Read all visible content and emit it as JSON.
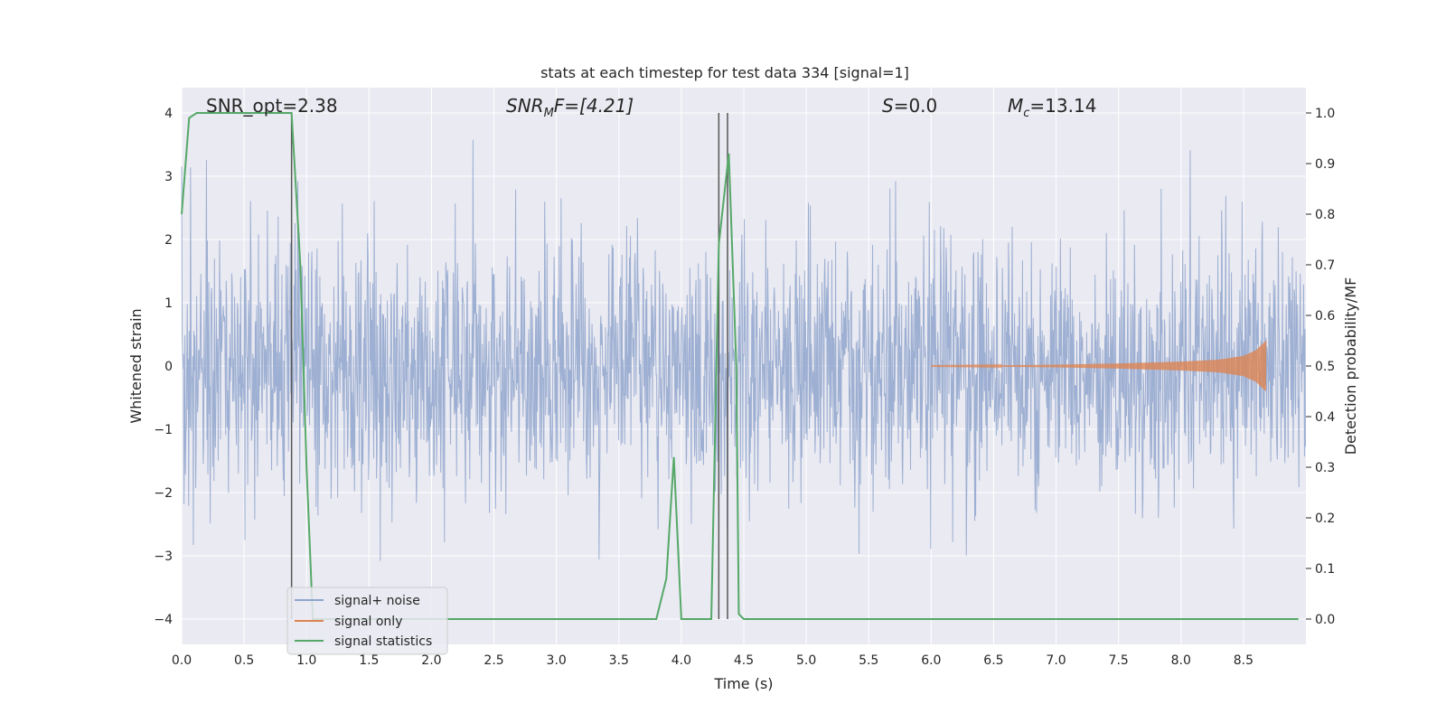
{
  "chart_data": {
    "type": "line",
    "title": "stats at each timestep for test data 334 [signal=1]",
    "xlabel": "Time (s)",
    "ylabel_left": "Whitened strain",
    "ylabel_right": "Detection probability/MF",
    "xlim": [
      0.0,
      9.0
    ],
    "ylim_left": [
      -4.4,
      4.4
    ],
    "ylim_right": [
      -0.05,
      1.05
    ],
    "x_ticks": [
      "0.0",
      "0.5",
      "1.0",
      "1.5",
      "2.0",
      "2.5",
      "3.0",
      "3.5",
      "4.0",
      "4.5",
      "5.0",
      "5.5",
      "6.0",
      "6.5",
      "7.0",
      "7.5",
      "8.0",
      "8.5"
    ],
    "y_left_ticks": [
      "−4",
      "−3",
      "−2",
      "−1",
      "0",
      "1",
      "2",
      "3",
      "4"
    ],
    "y_right_ticks": [
      "0.0",
      "0.1",
      "0.2",
      "0.3",
      "0.4",
      "0.5",
      "0.6",
      "0.7",
      "0.8",
      "0.9",
      "1.0"
    ],
    "grid": true,
    "legend_position": "lower-left",
    "annotations": {
      "snr_opt": "SNR_opt=2.38",
      "snr_mf_base": "SNR",
      "snr_mf_sub": "M",
      "snr_mf_rest": "F=[4.21]",
      "s_italic": "S",
      "s_value": "=0.0",
      "mc_base": "M",
      "mc_sub": "c",
      "mc_value": "=13.14"
    },
    "vertical_lines_x": [
      0.88,
      4.3,
      4.37
    ],
    "series": [
      {
        "name": "signal+ noise",
        "color": "#8fa5cc",
        "axis": "left",
        "description_values": "noise band roughly ±2 with spikes up to ±4"
      },
      {
        "name": "signal only",
        "color": "#dd8452",
        "axis": "left",
        "x": [
          6.0,
          6.5,
          7.0,
          7.5,
          8.0,
          8.3,
          8.5,
          8.6,
          8.68
        ],
        "amplitude": [
          0.005,
          0.01,
          0.02,
          0.04,
          0.07,
          0.1,
          0.16,
          0.25,
          0.4
        ]
      },
      {
        "name": "signal statistics",
        "color": "#55a868",
        "axis": "right",
        "x": [
          0.0,
          0.06,
          0.12,
          0.3,
          0.6,
          0.88,
          0.95,
          1.0,
          1.05,
          1.2,
          2.0,
          3.0,
          3.8,
          3.88,
          3.94,
          4.0,
          4.24,
          4.3,
          4.38,
          4.44,
          4.46,
          4.5,
          5.0,
          6.0,
          7.0,
          8.0,
          8.94
        ],
        "y": [
          0.8,
          0.99,
          1.0,
          1.0,
          1.0,
          1.0,
          0.7,
          0.3,
          0.0,
          0.0,
          0.0,
          0.0,
          0.0,
          0.08,
          0.32,
          0.0,
          0.0,
          0.74,
          0.92,
          0.5,
          0.01,
          0.0,
          0.0,
          0.0,
          0.0,
          0.0,
          0.0
        ]
      }
    ]
  }
}
